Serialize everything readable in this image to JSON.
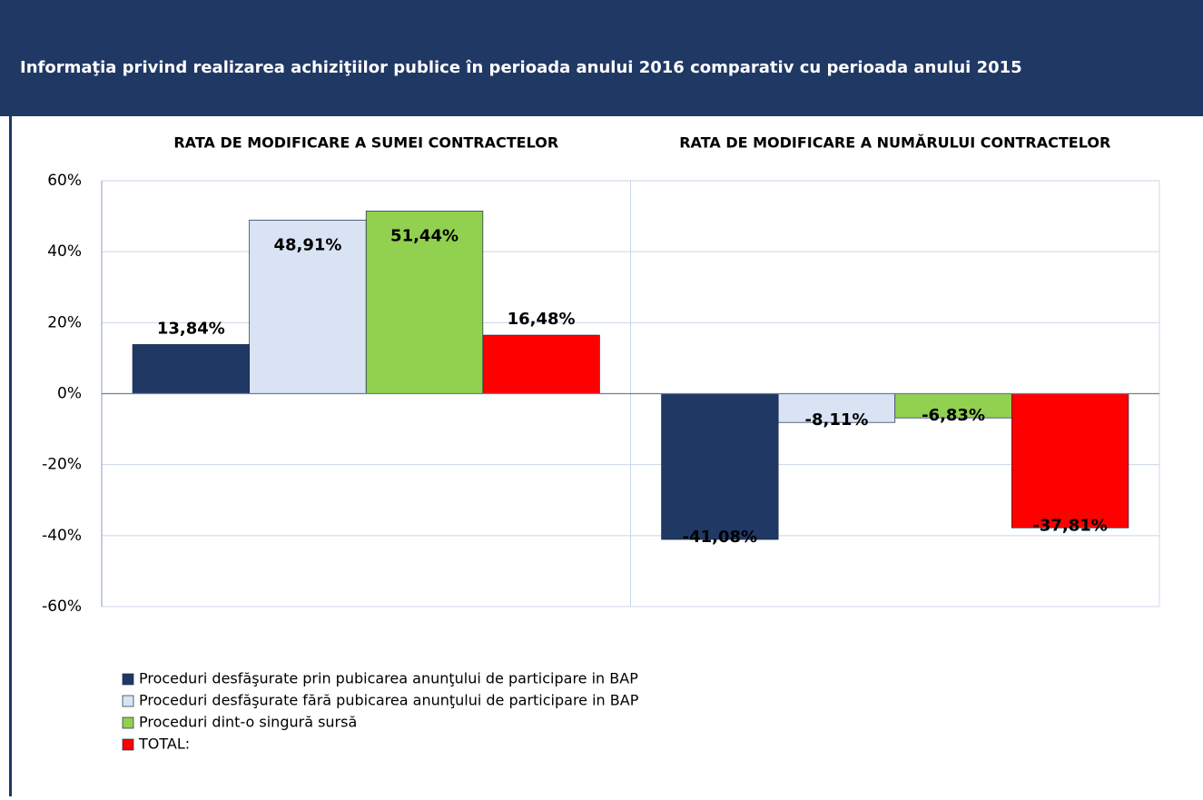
{
  "chart_data": {
    "type": "bar",
    "title": "Informaţia privind realizarea achiziţiilor publice în perioada anului 2016 comparativ cu perioada anului 2015",
    "categories": [
      "RATA DE MODIFICARE A SUMEI CONTRACTELOR",
      "RATA DE MODIFICARE A NUMĂRULUI CONTRACTELOR"
    ],
    "series": [
      {
        "name": "Proceduri desfăşurate prin pubicarea anunţului de participare in BAP",
        "color": "#203864",
        "values": [
          13.84,
          -41.08
        ],
        "value_labels": [
          "13,84%",
          "-41,08%"
        ]
      },
      {
        "name": "Proceduri desfăşurate fără pubicarea anunţului de participare in BAP",
        "color": "#dae3f3",
        "values": [
          48.91,
          -8.11
        ],
        "value_labels": [
          "48,91%",
          "-8,11%"
        ]
      },
      {
        "name": "Proceduri dint-o singură sursă",
        "color": "#92d050",
        "values": [
          51.44,
          -6.83
        ],
        "value_labels": [
          "51,44%",
          "-6,83%"
        ]
      },
      {
        "name": "TOTAL:",
        "color": "#ff0000",
        "values": [
          16.48,
          -37.81
        ],
        "value_labels": [
          "16,48%",
          "-37,81%"
        ]
      }
    ],
    "ylim": [
      -60,
      60
    ],
    "yticks": [
      {
        "value": -60,
        "label": "-60%"
      },
      {
        "value": -40,
        "label": "-40%"
      },
      {
        "value": -20,
        "label": "-20%"
      },
      {
        "value": 0,
        "label": "0%"
      },
      {
        "value": 20,
        "label": "20%"
      },
      {
        "value": 40,
        "label": "40%"
      },
      {
        "value": 60,
        "label": "60%"
      }
    ],
    "grid": true
  }
}
